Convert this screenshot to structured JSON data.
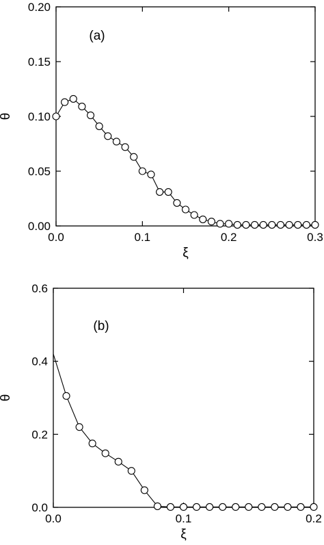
{
  "chart_data": [
    {
      "type": "line",
      "panel_label": "(a)",
      "xlabel": "ξ",
      "ylabel": "θ",
      "xlim": [
        0.0,
        0.3
      ],
      "ylim": [
        0.0,
        0.2
      ],
      "xticks": [
        "0.0",
        "0.1",
        "0.2",
        "0.3"
      ],
      "yticks": [
        "0.00",
        "0.05",
        "0.10",
        "0.15",
        "0.20"
      ],
      "xtick_values": [
        0.0,
        0.1,
        0.2,
        0.3
      ],
      "ytick_values": [
        0.0,
        0.05,
        0.1,
        0.15,
        0.2
      ],
      "grid": false,
      "series": [
        {
          "marker": "open-circle",
          "x": [
            0.0,
            0.01,
            0.02,
            0.03,
            0.04,
            0.05,
            0.06,
            0.07,
            0.08,
            0.09,
            0.1,
            0.11,
            0.12,
            0.13,
            0.14,
            0.15,
            0.16,
            0.17,
            0.18,
            0.19,
            0.2,
            0.21,
            0.22,
            0.23,
            0.24,
            0.25,
            0.26,
            0.27,
            0.28,
            0.29,
            0.3
          ],
          "y": [
            0.1,
            0.113,
            0.116,
            0.109,
            0.101,
            0.091,
            0.082,
            0.077,
            0.072,
            0.063,
            0.05,
            0.047,
            0.031,
            0.031,
            0.021,
            0.015,
            0.01,
            0.006,
            0.004,
            0.002,
            0.002,
            0.001,
            0.001,
            0.001,
            0.001,
            0.001,
            0.001,
            0.001,
            0.001,
            0.001,
            0.001
          ]
        }
      ]
    },
    {
      "type": "line",
      "panel_label": "(b)",
      "xlabel": "ξ",
      "ylabel": "θ",
      "xlim": [
        0.0,
        0.2
      ],
      "ylim": [
        0.0,
        0.6
      ],
      "xticks": [
        "0.0",
        "0.1",
        "0.2"
      ],
      "yticks": [
        "0.0",
        "0.2",
        "0.4",
        "0.6"
      ],
      "xtick_values": [
        0.0,
        0.1,
        0.2
      ],
      "ytick_values": [
        0.0,
        0.2,
        0.4,
        0.6
      ],
      "grid": false,
      "line_start": [
        0.0,
        0.42
      ],
      "series": [
        {
          "marker": "open-circle",
          "x": [
            0.01,
            0.02,
            0.03,
            0.04,
            0.05,
            0.06,
            0.07,
            0.08,
            0.09,
            0.1,
            0.11,
            0.12,
            0.13,
            0.14,
            0.15,
            0.16,
            0.17,
            0.18,
            0.19,
            0.2
          ],
          "y": [
            0.305,
            0.22,
            0.175,
            0.148,
            0.125,
            0.1,
            0.047,
            0.003,
            0.001,
            0.001,
            0.001,
            0.001,
            0.001,
            0.001,
            0.001,
            0.001,
            0.001,
            0.001,
            0.001,
            0.001
          ]
        }
      ]
    }
  ]
}
